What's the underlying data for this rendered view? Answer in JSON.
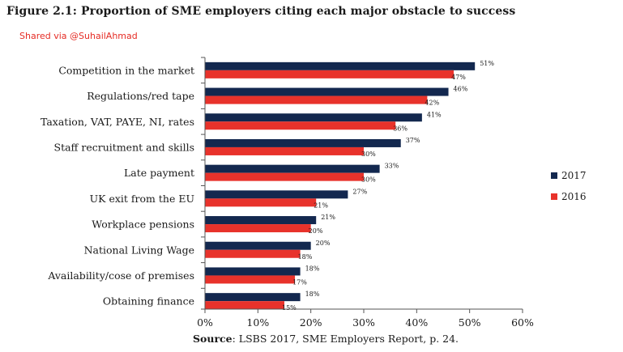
{
  "figure_title": "Figure 2.1: Proportion of SME employers citing each major obstacle to success",
  "watermark": "Shared via @SuhailAhmad",
  "source": {
    "label": "Source",
    "text": ": LSBS 2017, SME Employers Report, p. 24."
  },
  "colors": {
    "2017": "#13284f",
    "2016": "#e8322b"
  },
  "chart_data": {
    "type": "bar",
    "orientation": "horizontal",
    "title": "Figure 2.1: Proportion of SME employers citing each major obstacle to success",
    "categories": [
      "Competition in the market",
      "Regulations/red tape",
      "Taxation, VAT, PAYE, NI, rates",
      "Staff recruitment and skills",
      "Late payment",
      "UK exit from the EU",
      "Workplace pensions",
      "National Living Wage",
      "Availability/cose of premises",
      "Obtaining finance"
    ],
    "series": [
      {
        "name": "2017",
        "values": [
          51,
          46,
          41,
          37,
          33,
          27,
          21,
          20,
          18,
          18
        ],
        "labels": [
          "51%",
          "46%",
          "41%",
          "37%",
          "33%",
          "27%",
          "21%",
          "20%",
          "18%",
          "18%"
        ]
      },
      {
        "name": "2016",
        "values": [
          47,
          42,
          36,
          30,
          30,
          21,
          20,
          18,
          17,
          15
        ],
        "labels": [
          "47%",
          "42%",
          "36%",
          "30%",
          "30%",
          "21%",
          "20%",
          "18%",
          "17%",
          "15%"
        ]
      }
    ],
    "xlim": [
      0,
      60
    ],
    "xticks": [
      "0%",
      "10%",
      "20%",
      "30%",
      "40%",
      "50%",
      "60%"
    ],
    "grid": false,
    "legend": {
      "position": "right",
      "entries": [
        "2017",
        "2016"
      ]
    }
  }
}
